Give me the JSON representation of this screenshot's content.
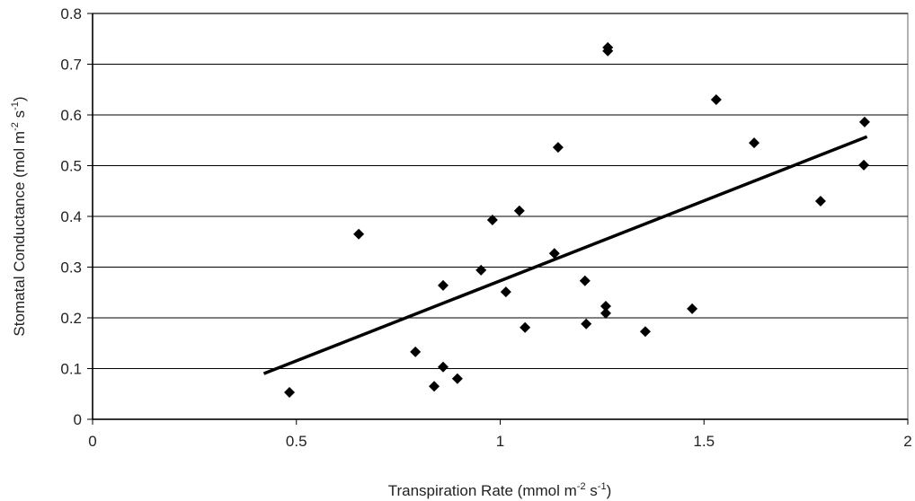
{
  "chart_data": {
    "type": "scatter",
    "x_label": [
      "Transpiration Rate (mmol m",
      "-2",
      " s",
      "-1",
      ")"
    ],
    "y_label": [
      "Stomatal Conductance (mol m",
      "-2",
      " s",
      "-1",
      ")"
    ],
    "color": "#000000",
    "x": [
      0.483,
      0.653,
      0.792,
      0.838,
      0.86,
      0.86,
      0.895,
      0.953,
      0.981,
      1.014,
      1.047,
      1.061,
      1.133,
      1.142,
      1.208,
      1.211,
      1.259,
      1.259,
      1.264,
      1.264,
      1.356,
      1.471,
      1.53,
      1.623,
      1.786,
      1.894,
      1.892
    ],
    "values": [
      0.053,
      0.365,
      0.133,
      0.065,
      0.264,
      0.103,
      0.08,
      0.294,
      0.393,
      0.251,
      0.411,
      0.181,
      0.327,
      0.536,
      0.273,
      0.188,
      0.223,
      0.209,
      0.733,
      0.726,
      0.173,
      0.218,
      0.63,
      0.545,
      0.43,
      0.586,
      0.501
    ],
    "trendline": {
      "x": [
        0.42,
        1.9
      ],
      "y": [
        0.09,
        0.557
      ],
      "color": "#000000"
    },
    "xlim": [
      0,
      2
    ],
    "ylim": [
      0,
      0.8
    ],
    "xticks": [
      0,
      0.5,
      1,
      1.5,
      2
    ],
    "yticks": [
      0,
      0.1,
      0.2,
      0.3,
      0.4,
      0.5,
      0.6,
      0.7,
      0.8
    ],
    "grid": true
  }
}
